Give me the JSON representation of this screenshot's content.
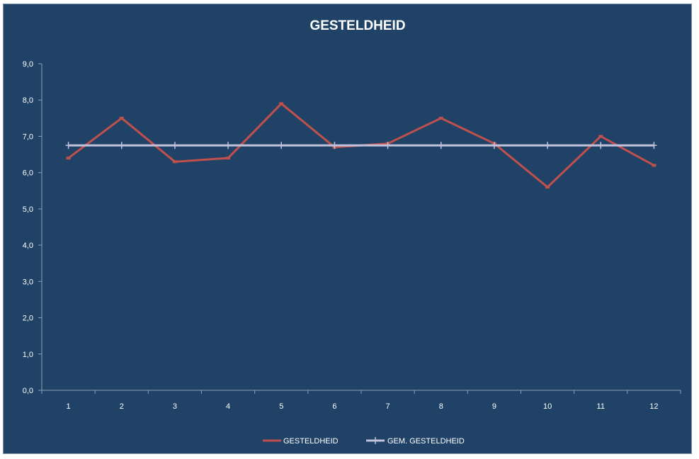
{
  "chart_data": {
    "type": "line",
    "title": "GESTELDHEID",
    "xlabel": "",
    "ylabel": "",
    "categories": [
      "1",
      "2",
      "3",
      "4",
      "5",
      "6",
      "7",
      "8",
      "9",
      "10",
      "11",
      "12"
    ],
    "ylim": [
      0,
      9
    ],
    "ytick_labels": [
      "0,0",
      "1,0",
      "2,0",
      "3,0",
      "4,0",
      "5,0",
      "6,0",
      "7,0",
      "8,0",
      "9,0"
    ],
    "grid": false,
    "legend_position": "bottom",
    "series": [
      {
        "name": "GESTELDHEID",
        "color": "#c0504d",
        "marker": "dash",
        "values": [
          6.4,
          7.5,
          6.3,
          6.4,
          7.9,
          6.7,
          6.8,
          7.5,
          6.8,
          5.6,
          7.0,
          6.2
        ]
      },
      {
        "name": "GEM. GESTELDHEID",
        "color": "#c3c2dd",
        "marker": "plus",
        "values": [
          6.75,
          6.75,
          6.75,
          6.75,
          6.75,
          6.75,
          6.75,
          6.75,
          6.75,
          6.75,
          6.75,
          6.75
        ]
      }
    ]
  }
}
